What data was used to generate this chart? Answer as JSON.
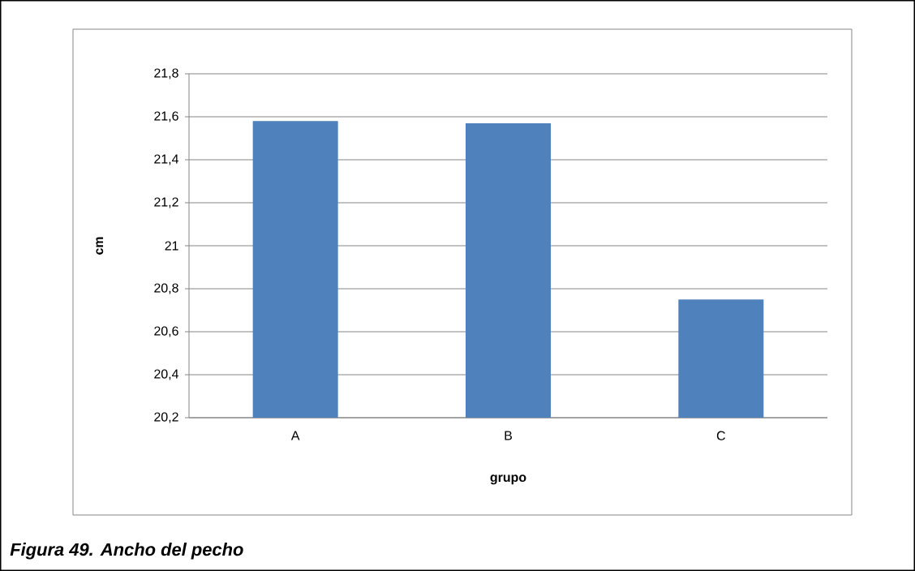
{
  "chart_data": {
    "type": "bar",
    "xlabel": "grupo",
    "ylabel": "cm",
    "categories": [
      "A",
      "B",
      "C"
    ],
    "values": [
      21.58,
      21.57,
      20.75
    ],
    "color": "#4f81bd",
    "ylim": [
      20.2,
      21.8
    ],
    "yticks": [
      {
        "value": 20.2,
        "label": "20,2"
      },
      {
        "value": 20.4,
        "label": "20,4"
      },
      {
        "value": 20.6,
        "label": "20,6"
      },
      {
        "value": 20.8,
        "label": "20,8"
      },
      21,
      {
        "value": 21.2,
        "label": "21,2"
      },
      {
        "value": 21.4,
        "label": "21,4"
      },
      {
        "value": 21.6,
        "label": "21,6"
      },
      {
        "value": 21.8,
        "label": "21,8"
      }
    ],
    "grid": "y",
    "annotations": [
      "Figura  49. Ancho del pecho"
    ]
  }
}
